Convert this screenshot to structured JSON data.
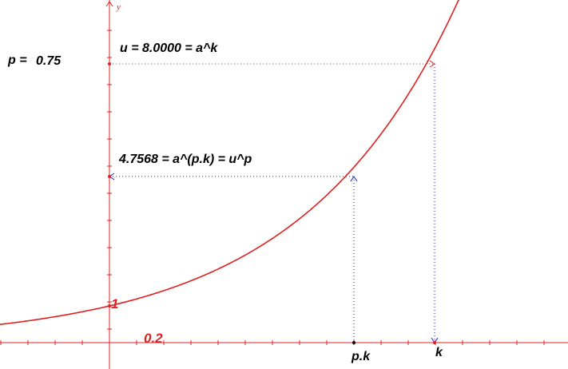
{
  "parameter_p": {
    "label": "p =",
    "value": "0.75"
  },
  "labels": {
    "u_label": "u = 8.0000 = a^k",
    "mid_label": "4.7568 = a^(p.k) = u^p",
    "one_label": "1",
    "scale_label": "0.2",
    "pk_label": "p.k",
    "k_label": "k",
    "y_axis_name": "y"
  },
  "function": {
    "expression": "a^x",
    "k": 3,
    "p": 0.75,
    "u": 8.0,
    "a_pk": 4.7568
  },
  "colors": {
    "curve": "#e02020",
    "axes": "#e02020",
    "guide_top": "#e02020",
    "guide_mid": "#1a1acc",
    "text": "#000000",
    "point": "#000000"
  }
}
